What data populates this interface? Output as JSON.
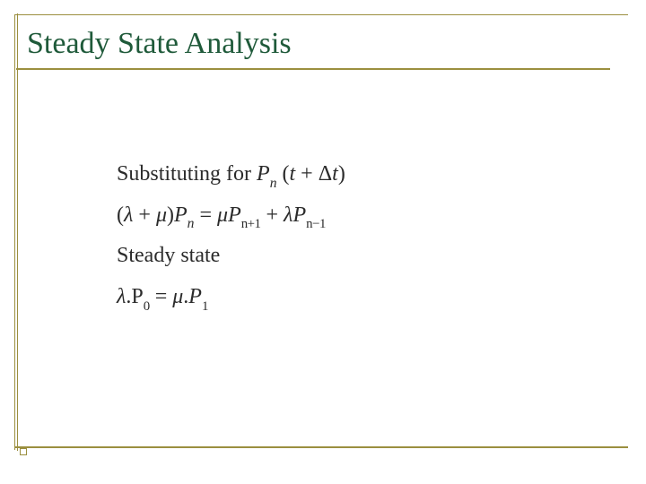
{
  "slide": {
    "title": "Steady State Analysis",
    "content": {
      "line1_prefix": "Substituting for ",
      "Pn": "P",
      "n": "n",
      "t_dt_open": "(",
      "t": "t",
      "plus": " + ",
      "Delta": "Δ",
      "t2": "t",
      "t_dt_close": ")",
      "line2_lhs_open": "(",
      "lambda": "λ",
      "line2_plus": " + ",
      "mu": "μ",
      "line2_lhs_close": ")",
      "eq": " = ",
      "n_plus_1": "n+1",
      "lambda2": "λ",
      "n_minus_1": "n−1",
      "line3": "Steady state",
      "dot": ".",
      "P_up": "P",
      "zero": "0",
      "one": "1"
    }
  },
  "style": {
    "line_color": "#9b8f3f",
    "title_color": "#1f5a3a",
    "text_color": "#2b2b2b",
    "background": "#ffffff",
    "title_fontsize": 34,
    "body_fontsize": 24
  }
}
